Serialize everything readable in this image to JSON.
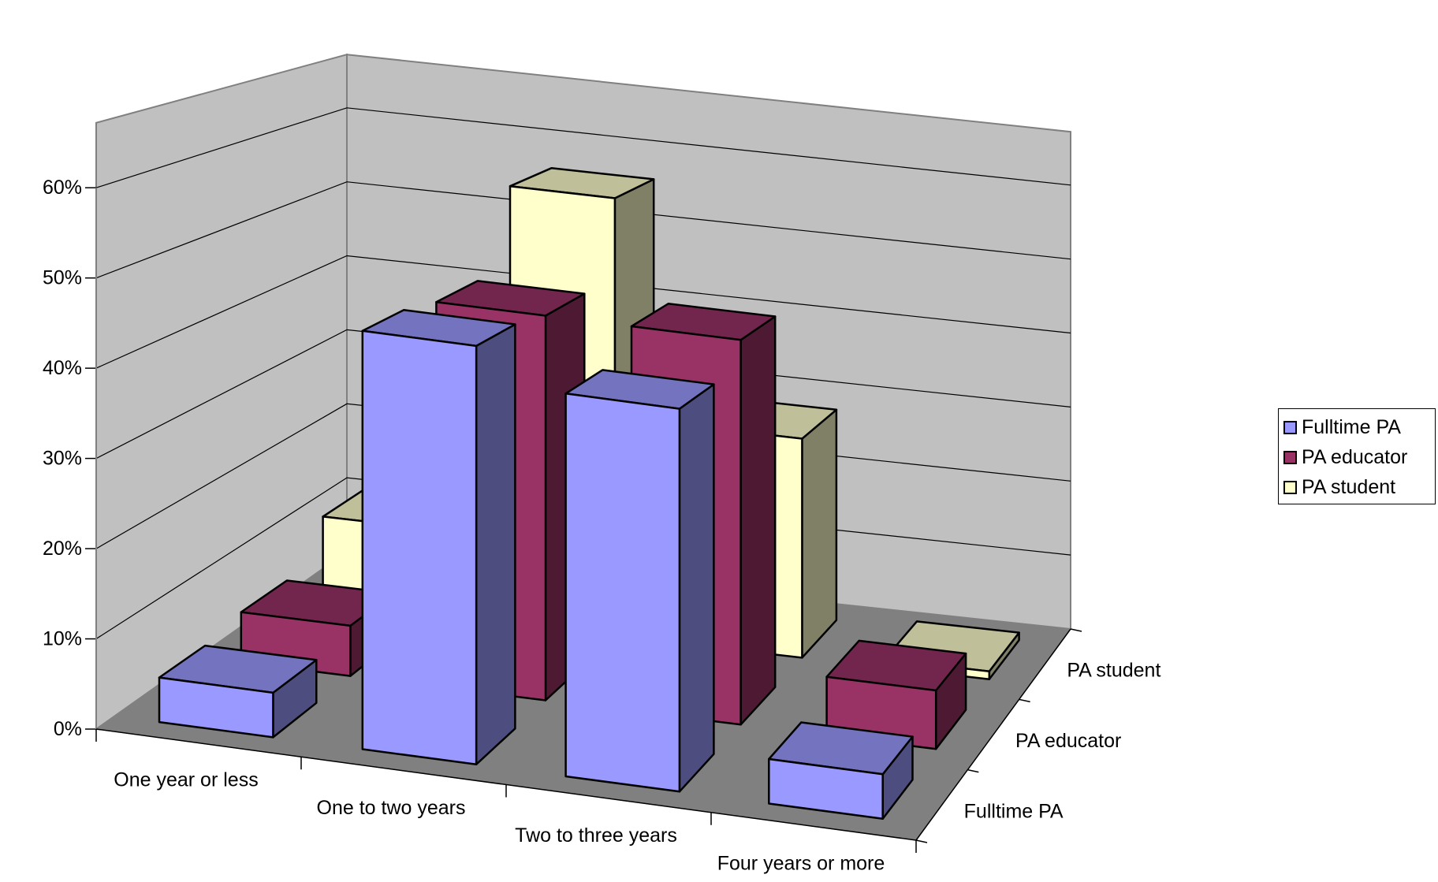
{
  "chart_data": {
    "type": "bar",
    "subtype": "3d-column",
    "categories": [
      "One year or less",
      "One to two years",
      "Two to three years",
      "Four years or more"
    ],
    "series": [
      {
        "name": "Fulltime PA",
        "values": [
          5,
          47,
          43,
          5
        ],
        "color": "#9999ff"
      },
      {
        "name": "PA educator",
        "values": [
          6,
          46,
          46,
          7
        ],
        "color": "#993366"
      },
      {
        "name": "PA student",
        "values": [
          11,
          56,
          28,
          1
        ],
        "color": "#ffffcc"
      }
    ],
    "depth_labels": [
      "PA student",
      "PA educator",
      "Fulltime PA"
    ],
    "y_ticks": [
      "0%",
      "10%",
      "20%",
      "30%",
      "40%",
      "50%",
      "60%"
    ],
    "ylim": [
      0,
      60
    ],
    "grid": true,
    "legend_position": "right",
    "title": "",
    "xlabel": "",
    "ylabel": ""
  }
}
